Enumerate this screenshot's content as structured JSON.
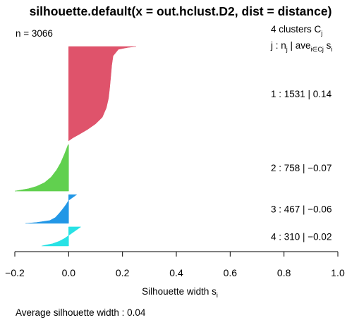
{
  "chart_data": {
    "type": "bar",
    "title": "silhouette.default(x = out.hclust.D2, dist = distance)",
    "n_label": "n = 3066",
    "clusters_header": {
      "prefix": "4  clusters  C",
      "sub": "j"
    },
    "legend_header": {
      "a": "j :  n",
      "a_sub": "j",
      "b": " | ave",
      "b_sub": "i∈Cj",
      "c": "  s",
      "c_sub": "i"
    },
    "xlabel": {
      "text": "Silhouette width s",
      "sub": "i"
    },
    "footer": "Average silhouette width :  0.04",
    "xlim": [
      -0.2,
      1.0
    ],
    "xticks": [
      "−0.2",
      "0.0",
      "0.2",
      "0.4",
      "0.6",
      "0.8",
      "1.0"
    ],
    "tick_values": [
      -0.2,
      0.0,
      0.2,
      0.4,
      0.6,
      0.8,
      1.0
    ],
    "series": [
      {
        "cluster": 1,
        "n": 1531,
        "ave": 0.14,
        "label": "1 :  1531  |  0.14",
        "color": "#DF536B",
        "profile": [
          [
            0,
            0.25
          ],
          [
            0.01,
            0.22
          ],
          [
            0.03,
            0.185
          ],
          [
            0.1,
            0.165
          ],
          [
            0.2,
            0.16
          ],
          [
            0.3,
            0.157
          ],
          [
            0.45,
            0.152
          ],
          [
            0.55,
            0.148
          ],
          [
            0.65,
            0.14
          ],
          [
            0.75,
            0.125
          ],
          [
            0.82,
            0.1
          ],
          [
            0.88,
            0.07
          ],
          [
            0.93,
            0.04
          ],
          [
            0.97,
            0.015
          ],
          [
            1,
            0.0
          ]
        ]
      },
      {
        "cluster": 2,
        "n": 758,
        "ave": -0.07,
        "label": "2 :  758  |  −0.07",
        "color": "#61D04F",
        "profile": [
          [
            0,
            0.0
          ],
          [
            0.02,
            -0.003
          ],
          [
            0.2,
            -0.015
          ],
          [
            0.4,
            -0.03
          ],
          [
            0.55,
            -0.045
          ],
          [
            0.7,
            -0.065
          ],
          [
            0.82,
            -0.09
          ],
          [
            0.9,
            -0.12
          ],
          [
            0.95,
            -0.15
          ],
          [
            0.98,
            -0.18
          ],
          [
            1,
            -0.2
          ]
        ]
      },
      {
        "cluster": 3,
        "n": 467,
        "ave": -0.06,
        "label": "3 :  467  |  −0.06",
        "color": "#2297E6",
        "profile": [
          [
            0,
            0.03
          ],
          [
            0.1,
            0.015
          ],
          [
            0.2,
            0.0
          ],
          [
            0.35,
            -0.01
          ],
          [
            0.5,
            -0.022
          ],
          [
            0.65,
            -0.035
          ],
          [
            0.8,
            -0.05
          ],
          [
            0.9,
            -0.07
          ],
          [
            0.97,
            -0.12
          ],
          [
            1,
            -0.16
          ]
        ]
      },
      {
        "cluster": 4,
        "n": 310,
        "ave": -0.02,
        "label": "4 :  310  |  −0.02",
        "color": "#28E2E5",
        "profile": [
          [
            0,
            0.045
          ],
          [
            0.15,
            0.03
          ],
          [
            0.3,
            0.015
          ],
          [
            0.45,
            0.0
          ],
          [
            0.6,
            -0.015
          ],
          [
            0.75,
            -0.035
          ],
          [
            0.88,
            -0.06
          ],
          [
            0.95,
            -0.085
          ],
          [
            1,
            -0.1
          ]
        ]
      }
    ]
  }
}
